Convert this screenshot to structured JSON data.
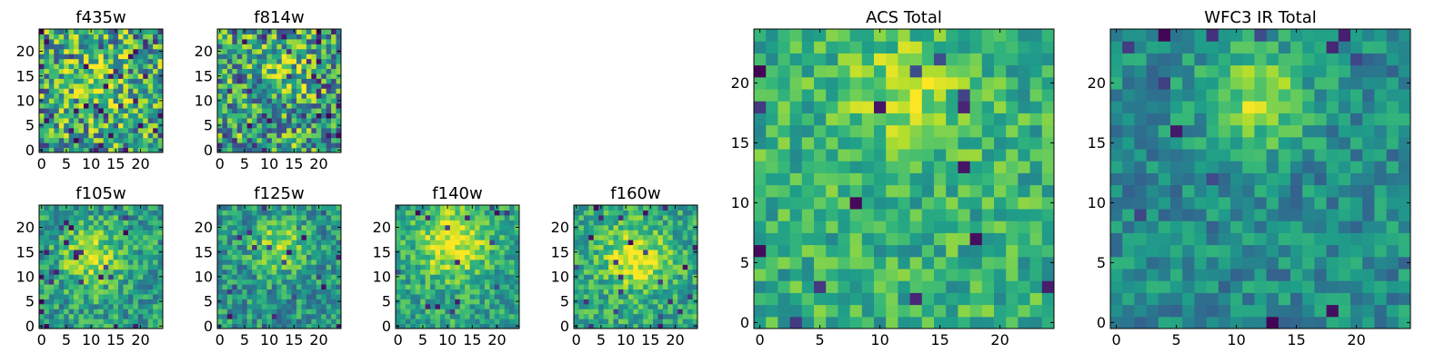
{
  "chart_data": [
    {
      "type": "heatmap",
      "title": "f435w",
      "colormap": "viridis",
      "grid": "off",
      "x_ticks": [
        "0",
        "5",
        "10",
        "15",
        "20"
      ],
      "y_ticks": [
        "0",
        "5",
        "10",
        "15",
        "20"
      ],
      "xlim": [
        -0.5,
        24.5
      ],
      "ylim": [
        -0.5,
        24.5
      ],
      "size": [
        25,
        25
      ],
      "note_values": "25x25 noise-dominated pixel image; individual pixel values not labeled"
    },
    {
      "type": "heatmap",
      "title": "f814w",
      "colormap": "viridis",
      "grid": "off",
      "x_ticks": [
        "0",
        "5",
        "10",
        "15",
        "20"
      ],
      "y_ticks": [
        "0",
        "5",
        "10",
        "15",
        "20"
      ],
      "xlim": [
        -0.5,
        24.5
      ],
      "ylim": [
        -0.5,
        24.5
      ],
      "size": [
        25,
        25
      ]
    },
    {
      "type": "heatmap",
      "title": "f105w",
      "colormap": "viridis",
      "grid": "off",
      "x_ticks": [
        "0",
        "5",
        "10",
        "15",
        "20"
      ],
      "y_ticks": [
        "0",
        "5",
        "10",
        "15",
        "20"
      ],
      "xlim": [
        -0.5,
        24.5
      ],
      "ylim": [
        -0.5,
        24.5
      ],
      "size": [
        25,
        25
      ]
    },
    {
      "type": "heatmap",
      "title": "f125w",
      "colormap": "viridis",
      "grid": "off",
      "x_ticks": [
        "0",
        "5",
        "10",
        "15",
        "20"
      ],
      "y_ticks": [
        "0",
        "5",
        "10",
        "15",
        "20"
      ],
      "xlim": [
        -0.5,
        24.5
      ],
      "ylim": [
        -0.5,
        24.5
      ],
      "size": [
        25,
        25
      ]
    },
    {
      "type": "heatmap",
      "title": "f140w",
      "colormap": "viridis",
      "grid": "off",
      "x_ticks": [
        "0",
        "5",
        "10",
        "15",
        "20"
      ],
      "y_ticks": [
        "0",
        "5",
        "10",
        "15",
        "20"
      ],
      "xlim": [
        -0.5,
        24.5
      ],
      "ylim": [
        -0.5,
        24.5
      ],
      "size": [
        25,
        25
      ]
    },
    {
      "type": "heatmap",
      "title": "f160w",
      "colormap": "viridis",
      "grid": "off",
      "x_ticks": [
        "0",
        "5",
        "10",
        "15",
        "20"
      ],
      "y_ticks": [
        "0",
        "5",
        "10",
        "15",
        "20"
      ],
      "xlim": [
        -0.5,
        24.5
      ],
      "ylim": [
        -0.5,
        24.5
      ],
      "size": [
        25,
        25
      ]
    },
    {
      "type": "heatmap",
      "title": "ACS Total",
      "colormap": "viridis",
      "grid": "off",
      "x_ticks": [
        "0",
        "5",
        "10",
        "15",
        "20"
      ],
      "y_ticks": [
        "0",
        "5",
        "10",
        "15",
        "20"
      ],
      "xlim": [
        -0.5,
        24.5
      ],
      "ylim": [
        -0.5,
        24.5
      ],
      "size": [
        25,
        25
      ]
    },
    {
      "type": "heatmap",
      "title": "WFC3 IR Total",
      "colormap": "viridis",
      "grid": "off",
      "x_ticks": [
        "0",
        "5",
        "10",
        "15",
        "20"
      ],
      "y_ticks": [
        "0",
        "5",
        "10",
        "15",
        "20"
      ],
      "xlim": [
        -0.5,
        24.5
      ],
      "ylim": [
        -0.5,
        24.5
      ],
      "size": [
        25,
        25
      ]
    }
  ],
  "colors": {
    "background": "#ffffff",
    "axes": "#000000"
  }
}
